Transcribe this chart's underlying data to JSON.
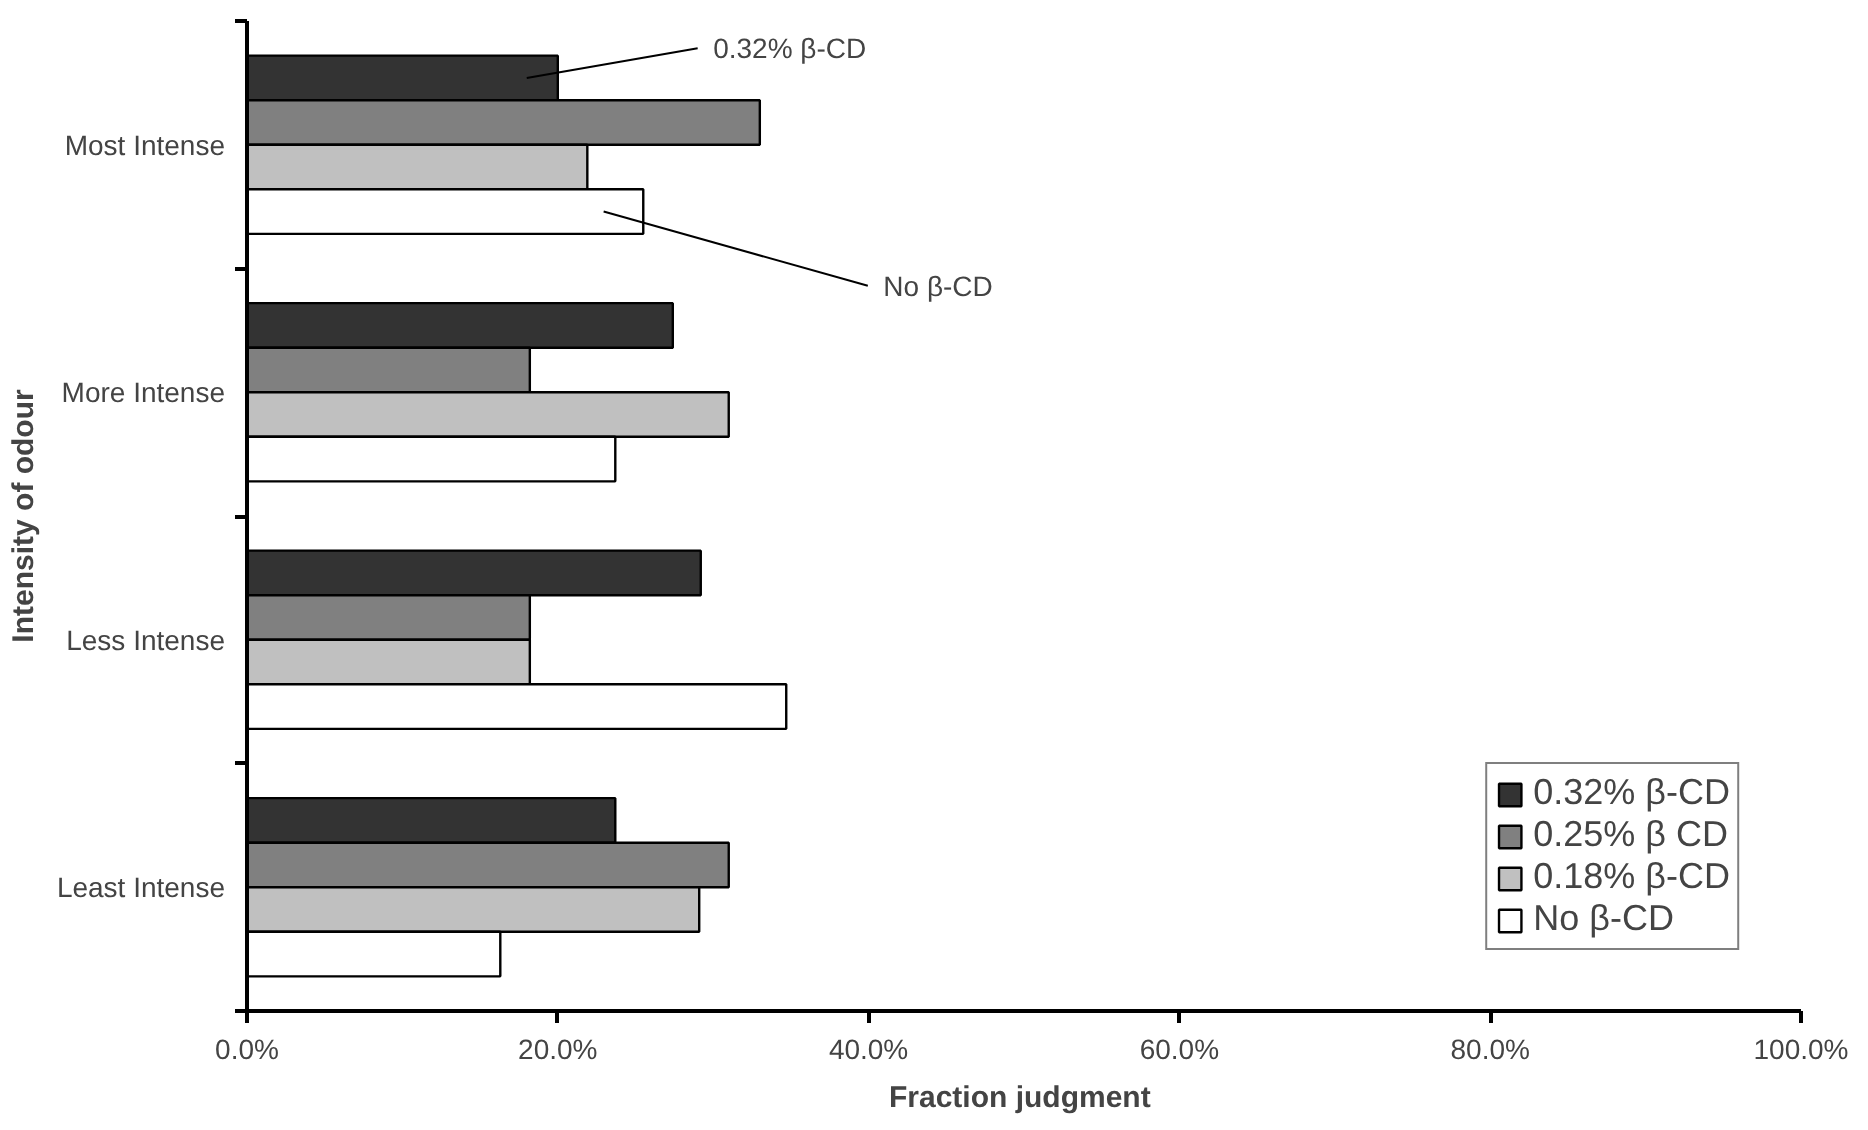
{
  "chart_data": {
    "type": "bar",
    "orientation": "horizontal",
    "xlabel": "Fraction  judgment",
    "ylabel": "Intensity of odour",
    "categories": [
      "Most Intense",
      "More Intense",
      "Less Intense",
      "Least Intense"
    ],
    "series": [
      {
        "name": "0.32% β-CD",
        "color": "#333333",
        "values": [
          20.0,
          27.4,
          29.2,
          23.7
        ]
      },
      {
        "name": "0.25% β CD",
        "color": "#808080",
        "values": [
          33.0,
          18.2,
          18.2,
          31.0
        ]
      },
      {
        "name": "0.18% β-CD",
        "color": "#c0c0c0",
        "values": [
          21.9,
          31.0,
          18.2,
          29.1
        ]
      },
      {
        "name": "No β-CD",
        "color": "#ffffff",
        "values": [
          25.5,
          23.7,
          34.7,
          16.3
        ]
      }
    ],
    "xlim": [
      0,
      100
    ],
    "xticks": [
      {
        "value": 0,
        "label": "0.0%"
      },
      {
        "value": 20,
        "label": "20.0%"
      },
      {
        "value": 40,
        "label": "40.0%"
      },
      {
        "value": 60,
        "label": "60.0%"
      },
      {
        "value": 80,
        "label": "80.0%"
      },
      {
        "value": 100,
        "label": "100.0%"
      }
    ],
    "annotations": [
      "0.32% β-CD",
      "No β-CD"
    ],
    "legend": "bottom right",
    "grid": false
  }
}
